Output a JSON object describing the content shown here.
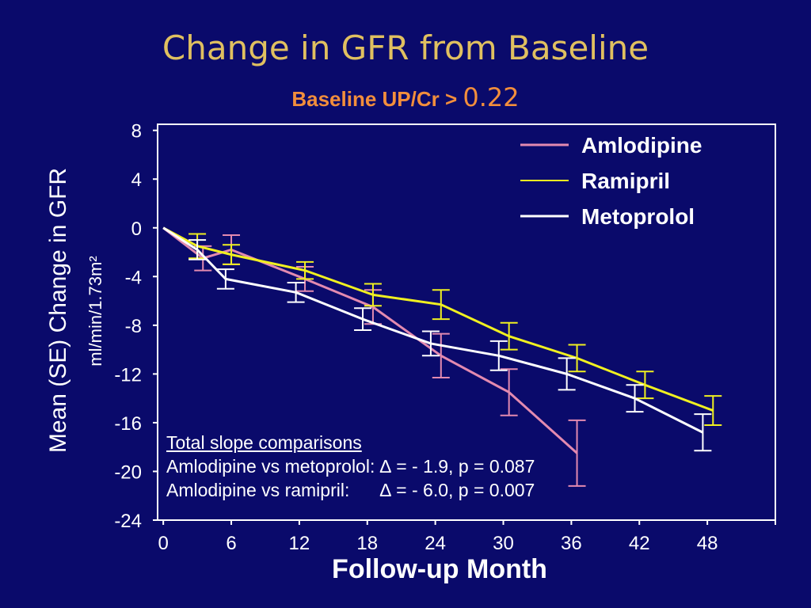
{
  "title": "Change in GFR from Baseline",
  "subtitle": {
    "prefix": "Baseline UP/Cr >",
    "value": "0.22"
  },
  "colors": {
    "background": "#0a0a6b",
    "title": "#e0c060",
    "subtitle": "#f28e3c",
    "axis": "#ffffff"
  },
  "comparisons": {
    "heading": "Total slope comparisons",
    "lines": [
      "Amlodipine vs metoprolol: ∆ = - 1.9, p = 0.087",
      "Amlodipine vs ramipril:      ∆ = - 6.0, p = 0.007"
    ]
  },
  "chart_data": {
    "type": "line",
    "title": "Change in GFR from Baseline",
    "xlabel": "Follow-up Month",
    "ylabel": "Mean (SE) Change in GFR",
    "yunit": "ml/min/1.73m²",
    "xlim": [
      -0.5,
      54
    ],
    "ylim": [
      -24,
      8.5
    ],
    "xticks": [
      0,
      6,
      12,
      18,
      24,
      30,
      36,
      42,
      48
    ],
    "yticks": [
      8,
      4,
      0,
      -4,
      -8,
      -12,
      -16,
      -20,
      -24
    ],
    "ytick_labels": [
      "8",
      "4",
      "0",
      "-4",
      "-8",
      "-12",
      "-16",
      "-20",
      "-24"
    ],
    "grid": false,
    "legend_position": "top-right",
    "series": [
      {
        "name": "Amlodipine",
        "color": "#e38ab0",
        "points": [
          {
            "x": 0,
            "y": 0,
            "err": 0
          },
          {
            "x": 3.5,
            "y": -2.5,
            "err": 1.0
          },
          {
            "x": 6,
            "y": -1.8,
            "err": 1.2
          },
          {
            "x": 12.5,
            "y": -4.2,
            "err": 1.0
          },
          {
            "x": 18.5,
            "y": -6.5,
            "err": 1.4
          },
          {
            "x": 24.5,
            "y": -10.5,
            "err": 1.8
          },
          {
            "x": 30.5,
            "y": -13.5,
            "err": 1.9
          },
          {
            "x": 36.5,
            "y": -18.5,
            "err": 2.7
          }
        ]
      },
      {
        "name": "Ramipril",
        "color": "#f0f020",
        "points": [
          {
            "x": 0,
            "y": 0,
            "err": 0
          },
          {
            "x": 3,
            "y": -1.5,
            "err": 1.0
          },
          {
            "x": 6,
            "y": -2.2,
            "err": 0.8
          },
          {
            "x": 12.5,
            "y": -3.5,
            "err": 0.7
          },
          {
            "x": 18.5,
            "y": -5.5,
            "err": 0.9
          },
          {
            "x": 24.5,
            "y": -6.3,
            "err": 1.2
          },
          {
            "x": 30.5,
            "y": -8.9,
            "err": 1.1
          },
          {
            "x": 36.5,
            "y": -10.7,
            "err": 1.1
          },
          {
            "x": 42.5,
            "y": -12.9,
            "err": 1.1
          },
          {
            "x": 48.5,
            "y": -15.0,
            "err": 1.2
          }
        ]
      },
      {
        "name": "Metoprolol",
        "color": "#ffffff",
        "points": [
          {
            "x": 0,
            "y": 0,
            "err": 0
          },
          {
            "x": 3,
            "y": -1.8,
            "err": 0.8
          },
          {
            "x": 5.5,
            "y": -4.2,
            "err": 0.8
          },
          {
            "x": 11.7,
            "y": -5.3,
            "err": 0.8
          },
          {
            "x": 17.6,
            "y": -7.5,
            "err": 0.9
          },
          {
            "x": 23.6,
            "y": -9.5,
            "err": 1.0
          },
          {
            "x": 29.6,
            "y": -10.5,
            "err": 1.2
          },
          {
            "x": 35.6,
            "y": -12.0,
            "err": 1.3
          },
          {
            "x": 41.6,
            "y": -14.0,
            "err": 1.1
          },
          {
            "x": 47.6,
            "y": -16.8,
            "err": 1.5
          }
        ]
      }
    ]
  }
}
